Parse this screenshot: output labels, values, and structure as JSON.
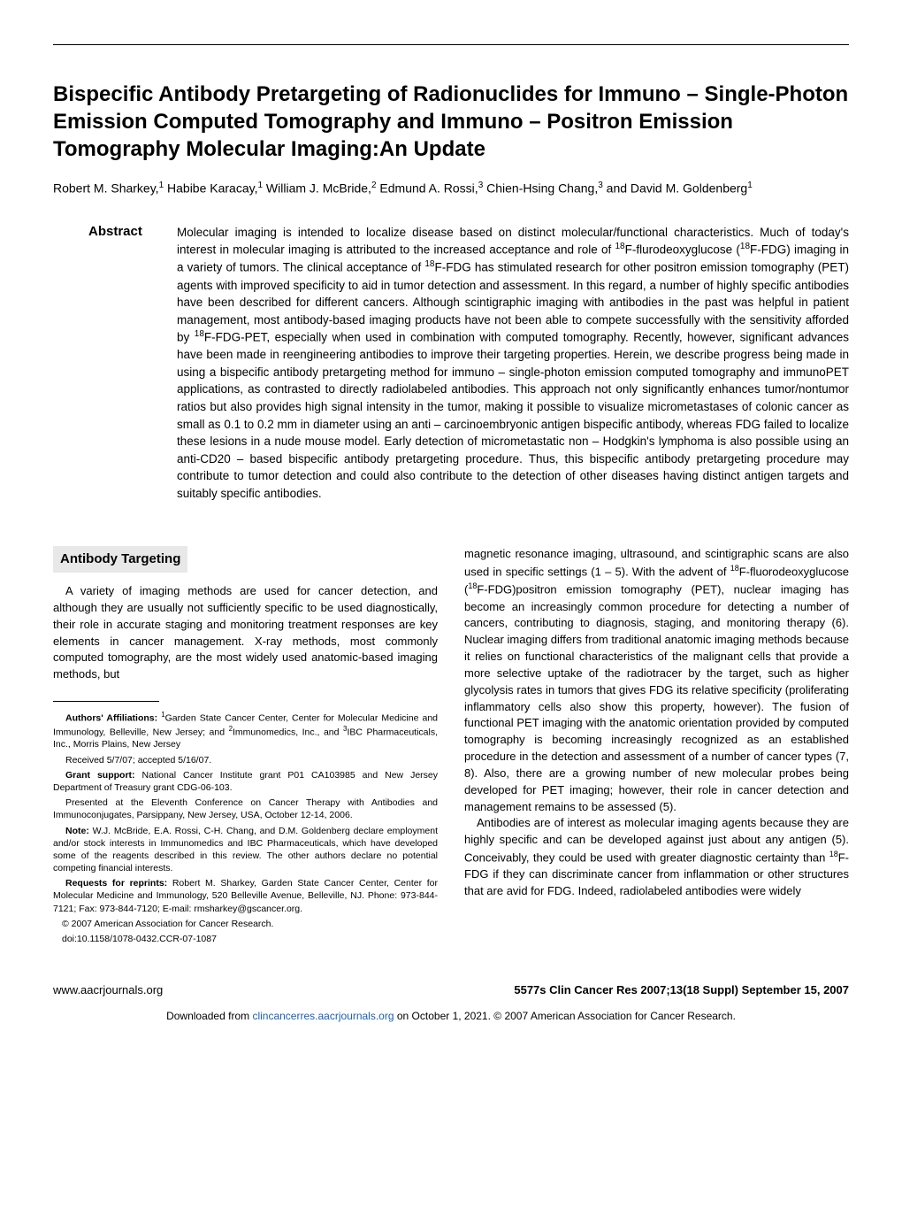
{
  "title": "Bispecific Antibody Pretargeting of Radionuclides for Immuno – Single-Photon Emission Computed Tomography and Immuno – Positron Emission Tomography Molecular Imaging:An Update",
  "authors_html": "Robert M. Sharkey,<sup>1</sup> Habibe Karacay,<sup>1</sup> William J. McBride,<sup>2</sup> Edmund A. Rossi,<sup>3</sup> Chien-Hsing Chang,<sup>3</sup> and David M. Goldenberg<sup>1</sup>",
  "abstract": {
    "label": "Abstract",
    "text_html": "Molecular imaging is intended to localize disease based on distinct molecular/functional characteristics. Much of today's interest in molecular imaging is attributed to the increased acceptance and role of <sup>18</sup>F-flurodeoxyglucose (<sup>18</sup>F-FDG) imaging in a variety of tumors. The clinical acceptance of <sup>18</sup>F-FDG has stimulated research for other positron emission tomography (PET) agents with improved specificity to aid in tumor detection and assessment. In this regard, a number of highly specific antibodies have been described for different cancers. Although scintigraphic imaging with antibodies in the past was helpful in patient management, most antibody-based imaging products have not been able to compete successfully with the sensitivity afforded by <sup>18</sup>F-FDG-PET, especially when used in combination with computed tomography. Recently, however, significant advances have been made in reengineering antibodies to improve their targeting properties. Herein, we describe progress being made in using a bispecific antibody pretargeting method for immuno – single-photon emission computed tomography and immunoPET applications, as contrasted to directly radiolabeled antibodies. This approach not only significantly enhances tumor/nontumor ratios but also provides high signal intensity in the tumor, making it possible to visualize micrometastases of colonic cancer as small as 0.1 to 0.2 mm in diameter using an anti – carcinoembryonic antigen bispecific antibody, whereas FDG failed to localize these lesions in a nude mouse model. Early detection of micrometastatic non – Hodgkin's lymphoma is also possible using an anti-CD20 – based bispecific antibody pretargeting procedure. Thus, this bispecific antibody pretargeting procedure may contribute to tumor detection and could also contribute to the detection of other diseases having distinct antigen targets and suitably specific antibodies."
  },
  "section": {
    "header": "Antibody Targeting",
    "col1_p1": "A variety of imaging methods are used for cancer detection, and although they are usually not sufficiently specific to be used diagnostically, their role in accurate staging and monitoring treatment responses are key elements in cancer management. X-ray methods, most commonly computed tomography, are the most widely used anatomic-based imaging methods, but",
    "col2_p1_html": "magnetic resonance imaging, ultrasound, and scintigraphic scans are also used in specific settings (1 – 5). With the advent of <sup>18</sup>F-fluorodeoxyglucose (<sup>18</sup>F-FDG)positron emission tomography (PET), nuclear imaging has become an increasingly common procedure for detecting a number of cancers, contributing to diagnosis, staging, and monitoring therapy (6). Nuclear imaging differs from traditional anatomic imaging methods because it relies on functional characteristics of the malignant cells that provide a more selective uptake of the radiotracer by the target, such as higher glycolysis rates in tumors that gives FDG its relative specificity (proliferating inflammatory cells also show this property, however). The fusion of functional PET imaging with the anatomic orientation provided by computed tomography is becoming increasingly recognized as an established procedure in the detection and assessment of a number of cancer types (7, 8). Also, there are a growing number of new molecular probes being developed for PET imaging; however, their role in cancer detection and management remains to be assessed (5).",
    "col2_p2_html": "Antibodies are of interest as molecular imaging agents because they are highly specific and can be developed against just about any antigen (5). Conceivably, they could be used with greater diagnostic certainty than <sup>18</sup>F-FDG if they can discriminate cancer from inflammation or other structures that are avid for FDG. Indeed, radiolabeled antibodies were widely"
  },
  "footnotes": {
    "affiliations_html": "<b>Authors' Affiliations:</b> <sup>1</sup>Garden State Cancer Center, Center for Molecular Medicine and Immunology, Belleville, New Jersey; and <sup>2</sup>Immunomedics, Inc., and <sup>3</sup>IBC Pharmaceuticals, Inc., Morris Plains, New Jersey",
    "received": "Received 5/7/07; accepted 5/16/07.",
    "grant_html": "<b>Grant support:</b> National Cancer Institute grant P01 CA103985 and New Jersey Department of Treasury grant CDG-06-103.",
    "presented": "Presented at the Eleventh Conference on Cancer Therapy with Antibodies and Immunoconjugates, Parsippany, New Jersey, USA, October 12-14, 2006.",
    "note_html": "<b>Note:</b> W.J. McBride, E.A. Rossi, C-H. Chang, and D.M. Goldenberg declare employment and/or stock interests in Immunomedics and IBC Pharmaceuticals, which have developed some of the reagents described in this review. The other authors declare no potential competing financial interests.",
    "reprints_html": "<b>Requests for reprints:</b> Robert M. Sharkey, Garden State Cancer Center, Center for Molecular Medicine and Immunology, 520 Belleville Avenue, Belleville, NJ. Phone: 973-844-7121; Fax: 973-844-7120; E-mail: rmsharkey@gscancer.org.",
    "copyright": "© 2007 American Association for Cancer Research.",
    "doi": "doi:10.1158/1078-0432.CCR-07-1087"
  },
  "footer": {
    "left": "www.aacrjournals.org",
    "right": "5577s   Clin Cancer Res 2007;13(18 Suppl) September 15, 2007"
  },
  "download": {
    "prefix": "Downloaded from ",
    "link_text": "clincancerres.aacrjournals.org",
    "suffix": " on October 1, 2021. © 2007 American Association for Cancer Research."
  }
}
